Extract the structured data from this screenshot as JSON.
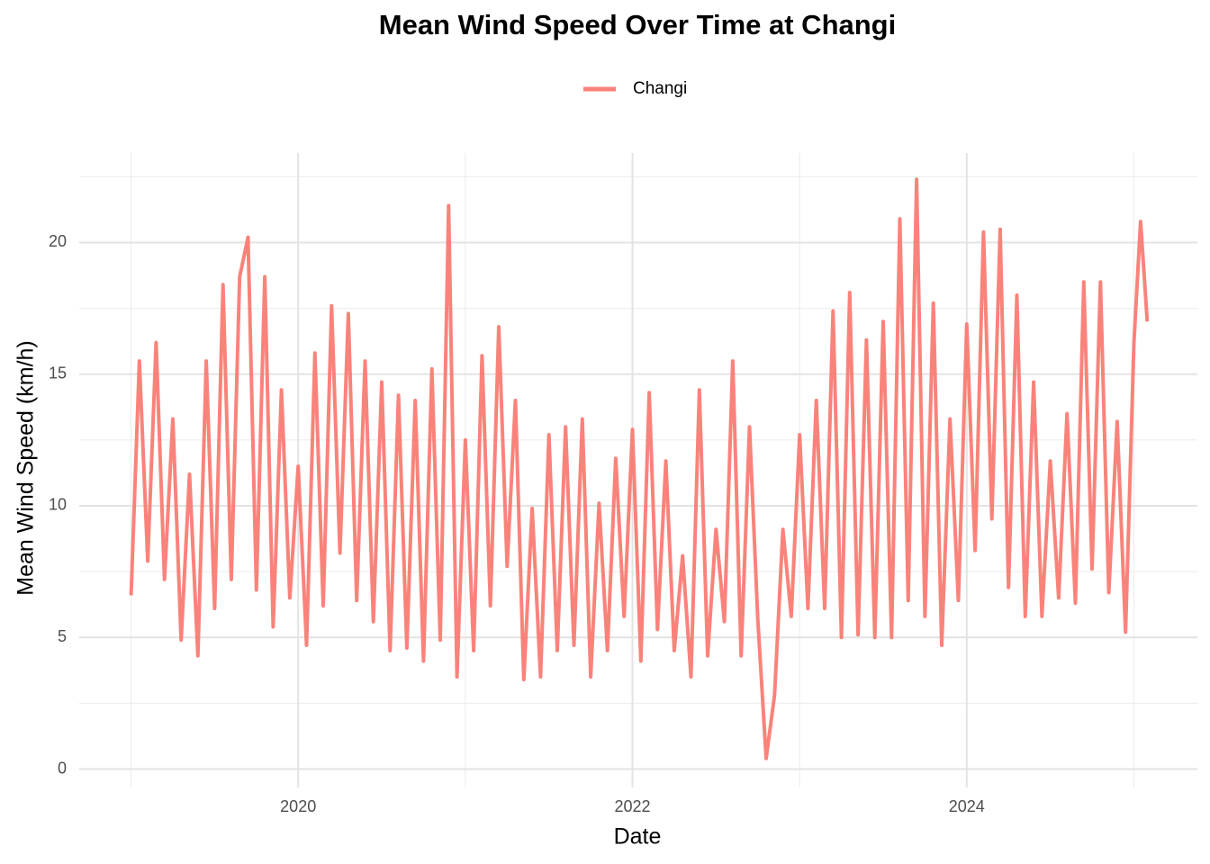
{
  "chart_data": {
    "type": "line",
    "title": "Mean Wind Speed Over Time at Changi",
    "x_label": "Date",
    "y_label": "Mean Wind Speed (km/h)",
    "x": [
      2019.0,
      2019.05,
      2019.1,
      2019.15,
      2019.2,
      2019.25,
      2019.3,
      2019.35,
      2019.4,
      2019.45,
      2019.5,
      2019.55,
      2019.6,
      2019.65,
      2019.7,
      2019.75,
      2019.8,
      2019.85,
      2019.9,
      2019.95,
      2020.0,
      2020.05,
      2020.1,
      2020.15,
      2020.2,
      2020.25,
      2020.3,
      2020.35,
      2020.4,
      2020.45,
      2020.5,
      2020.55,
      2020.6,
      2020.65,
      2020.7,
      2020.75,
      2020.8,
      2020.85,
      2020.9,
      2020.95,
      2021.0,
      2021.05,
      2021.1,
      2021.15,
      2021.2,
      2021.25,
      2021.3,
      2021.35,
      2021.4,
      2021.45,
      2021.5,
      2021.55,
      2021.6,
      2021.65,
      2021.7,
      2021.75,
      2021.8,
      2021.85,
      2021.9,
      2021.95,
      2022.0,
      2022.05,
      2022.1,
      2022.15,
      2022.2,
      2022.25,
      2022.3,
      2022.35,
      2022.4,
      2022.45,
      2022.5,
      2022.55,
      2022.6,
      2022.65,
      2022.7,
      2022.75,
      2022.8,
      2022.85,
      2022.9,
      2022.95,
      2023.0,
      2023.05,
      2023.1,
      2023.15,
      2023.2,
      2023.25,
      2023.3,
      2023.35,
      2023.4,
      2023.45,
      2023.5,
      2023.55,
      2023.6,
      2023.65,
      2023.7,
      2023.75,
      2023.8,
      2023.85,
      2023.9,
      2023.95,
      2024.0,
      2024.05,
      2024.1,
      2024.15,
      2024.2,
      2024.25,
      2024.3,
      2024.35,
      2024.4,
      2024.45,
      2024.5,
      2024.55,
      2024.6,
      2024.65,
      2024.7,
      2024.75,
      2024.8,
      2024.85,
      2024.9,
      2024.95,
      2025.0,
      2025.04,
      2025.08
    ],
    "series": [
      {
        "name": "Changi",
        "color": "#f8766d",
        "values": [
          6.6,
          15.5,
          7.9,
          16.2,
          7.2,
          13.3,
          4.9,
          11.2,
          4.3,
          15.5,
          6.1,
          18.4,
          7.2,
          18.7,
          20.2,
          6.8,
          18.7,
          5.4,
          14.4,
          6.5,
          11.5,
          4.7,
          15.8,
          6.2,
          17.6,
          8.2,
          17.3,
          6.4,
          15.5,
          5.6,
          14.7,
          4.5,
          14.2,
          4.6,
          14.0,
          4.1,
          15.2,
          4.9,
          21.4,
          3.5,
          12.5,
          4.5,
          15.7,
          6.2,
          16.8,
          7.7,
          14.0,
          3.4,
          9.9,
          3.5,
          12.7,
          4.5,
          13.0,
          4.7,
          13.3,
          3.5,
          10.1,
          4.5,
          11.8,
          5.8,
          12.9,
          4.1,
          14.3,
          5.3,
          11.7,
          4.5,
          8.1,
          3.5,
          14.4,
          4.3,
          9.1,
          5.6,
          15.5,
          4.3,
          13.0,
          5.7,
          0.4,
          2.8,
          9.1,
          5.8,
          12.7,
          6.1,
          14.0,
          6.1,
          17.4,
          5.0,
          18.1,
          5.1,
          16.3,
          5.0,
          17.0,
          5.0,
          20.9,
          6.4,
          22.4,
          5.8,
          17.7,
          4.7,
          13.3,
          6.4,
          16.9,
          8.3,
          20.4,
          9.5,
          20.5,
          6.9,
          18.0,
          5.8,
          14.7,
          5.8,
          11.7,
          6.5,
          13.5,
          6.3,
          18.5,
          7.6,
          18.5,
          6.7,
          13.2,
          5.2,
          16.2,
          20.8,
          17.0
        ]
      }
    ],
    "xlim": [
      2018.69,
      2025.38
    ],
    "ylim": [
      -0.7,
      23.4
    ],
    "xticks": [
      2020,
      2022,
      2024
    ],
    "yticks": [
      0,
      5,
      10,
      15,
      20
    ],
    "xminorticks": [
      2019,
      2021,
      2023,
      2025
    ],
    "yminorticks": [
      2.5,
      7.5,
      12.5,
      17.5,
      22.5
    ],
    "grid": true,
    "legend": "top"
  }
}
